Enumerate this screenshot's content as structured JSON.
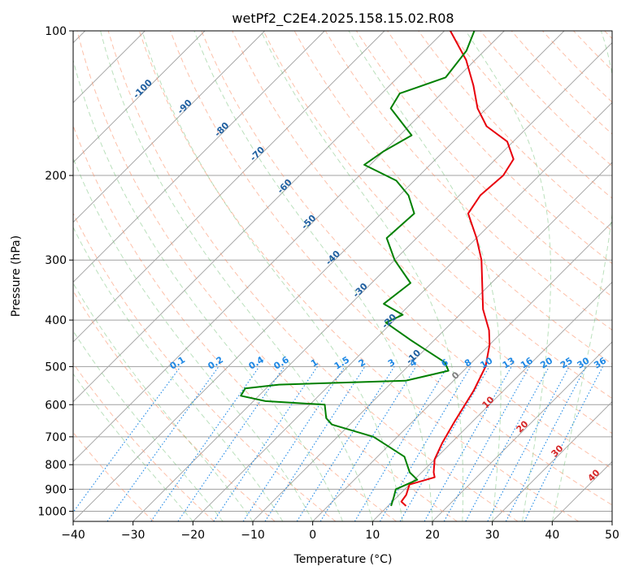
{
  "chart_data": {
    "type": "line",
    "subtype": "skew-t log-p diagram",
    "title": "wetPf2_C2E4.2025.158.15.02.R08",
    "xlabel": "Temperature (°C)",
    "ylabel": "Pressure (hPa)",
    "xlim": [
      -40,
      50
    ],
    "ylim": [
      1050,
      100
    ],
    "y_scale": "log",
    "grid": true,
    "x_ticks": [
      "−40",
      "−30",
      "−20",
      "−10",
      "0",
      "10",
      "20",
      "30",
      "40",
      "50"
    ],
    "y_ticks": [
      "100",
      "200",
      "300",
      "400",
      "500",
      "600",
      "700",
      "800",
      "900",
      "1000"
    ],
    "colors": {
      "temperature": "#e8000b",
      "dewpoint": "#008000",
      "isotherm": "#a0a0a0",
      "dry_adiabat": "#fc8d62",
      "moist_adiabat": "#66bb6a",
      "mixing_ratio": "#1e88e5",
      "upper_isotherm_label": "#1f5fa0",
      "warm_isotherm_label": "#d62728"
    },
    "series": [
      {
        "role": "temperature",
        "points": [
          {
            "p": 975,
            "t": 13.0
          },
          {
            "p": 955,
            "t": 11.5
          },
          {
            "p": 925,
            "t": 11.2
          },
          {
            "p": 880,
            "t": 10.0
          },
          {
            "p": 850,
            "t": 13.0
          },
          {
            "p": 830,
            "t": 12.0
          },
          {
            "p": 780,
            "t": 10.0
          },
          {
            "p": 720,
            "t": 8.5
          },
          {
            "p": 650,
            "t": 7.0
          },
          {
            "p": 560,
            "t": 5.0
          },
          {
            "p": 500,
            "t": 3.0
          },
          {
            "p": 450,
            "t": 0.0
          },
          {
            "p": 420,
            "t": -2.5
          },
          {
            "p": 380,
            "t": -7.0
          },
          {
            "p": 340,
            "t": -11.0
          },
          {
            "p": 300,
            "t": -15.5
          },
          {
            "p": 270,
            "t": -20.0
          },
          {
            "p": 240,
            "t": -25.5
          },
          {
            "p": 220,
            "t": -26.5
          },
          {
            "p": 200,
            "t": -26.0
          },
          {
            "p": 185,
            "t": -27.0
          },
          {
            "p": 170,
            "t": -31.0
          },
          {
            "p": 158,
            "t": -37.0
          },
          {
            "p": 145,
            "t": -41.5
          },
          {
            "p": 130,
            "t": -46.0
          },
          {
            "p": 115,
            "t": -51.5
          },
          {
            "p": 100,
            "t": -59.0
          }
        ]
      },
      {
        "role": "dewpoint",
        "points": [
          {
            "p": 975,
            "t": 10.5
          },
          {
            "p": 935,
            "t": 9.5
          },
          {
            "p": 900,
            "t": 8.5
          },
          {
            "p": 860,
            "t": 10.5
          },
          {
            "p": 830,
            "t": 8.0
          },
          {
            "p": 770,
            "t": 4.5
          },
          {
            "p": 700,
            "t": -4.0
          },
          {
            "p": 660,
            "t": -13.0
          },
          {
            "p": 640,
            "t": -15.0
          },
          {
            "p": 600,
            "t": -17.5
          },
          {
            "p": 590,
            "t": -28.0
          },
          {
            "p": 575,
            "t": -33.0
          },
          {
            "p": 555,
            "t": -33.5
          },
          {
            "p": 545,
            "t": -28.5
          },
          {
            "p": 535,
            "t": -8.0
          },
          {
            "p": 510,
            "t": -2.5
          },
          {
            "p": 490,
            "t": -4.5
          },
          {
            "p": 440,
            "t": -14.0
          },
          {
            "p": 405,
            "t": -21.0
          },
          {
            "p": 390,
            "t": -19.5
          },
          {
            "p": 370,
            "t": -24.5
          },
          {
            "p": 335,
            "t": -23.5
          },
          {
            "p": 300,
            "t": -30.0
          },
          {
            "p": 270,
            "t": -35.0
          },
          {
            "p": 240,
            "t": -34.5
          },
          {
            "p": 220,
            "t": -38.5
          },
          {
            "p": 205,
            "t": -43.0
          },
          {
            "p": 190,
            "t": -51.0
          },
          {
            "p": 178,
            "t": -50.0
          },
          {
            "p": 165,
            "t": -48.0
          },
          {
            "p": 145,
            "t": -56.0
          },
          {
            "p": 135,
            "t": -57.0
          },
          {
            "p": 125,
            "t": -52.0
          },
          {
            "p": 110,
            "t": -53.0
          },
          {
            "p": 100,
            "t": -55.0
          }
        ]
      }
    ],
    "mixing_ratio_labels": [
      "0.1",
      "0.2",
      "0.4",
      "0.6",
      "1",
      "1.5",
      "2",
      "3",
      "4",
      "6",
      "8",
      "10",
      "13",
      "16",
      "20",
      "25",
      "30",
      "36"
    ],
    "isotherm_labels_upper": [
      "-100",
      "-90",
      "-80",
      "-70",
      "-60",
      "-50",
      "-40",
      "-30",
      "-20",
      "-10"
    ],
    "isotherm_labels_warm": [
      "0",
      "10",
      "20",
      "30",
      "40"
    ]
  }
}
